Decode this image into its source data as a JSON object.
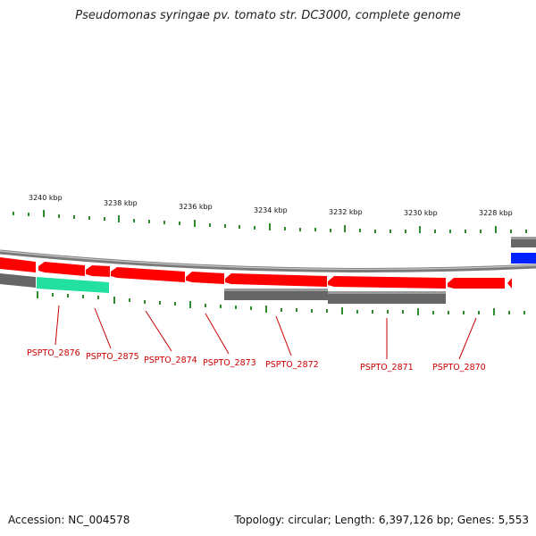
{
  "title": "Pseudomonas syringae pv. tomato str. DC3000, complete genome",
  "footer": {
    "accession": "Accession: NC_004578",
    "summary": "Topology: circular; Length: 6,397,126 bp; Genes: 5,553"
  },
  "colors": {
    "forward_cds": "#ff0000",
    "reverse_cds": "#ff0000",
    "gray_feature": "#666666",
    "teal_feature": "#22e0a0",
    "blue_feature": "#0022ff",
    "tick": "#2e8b2e",
    "label": "#cc0000"
  },
  "kbp_labels": [
    "3240 kbp",
    "3238 kbp",
    "3236 kbp",
    "3234 kbp",
    "3232 kbp",
    "3230 kbp",
    "3228 kbp"
  ],
  "gene_labels": [
    "PSPTO_2876",
    "PSPTO_2875",
    "PSPTO_2874",
    "PSPTO_2873",
    "PSPTO_2872",
    "PSPTO_2871",
    "PSPTO_2870"
  ]
}
